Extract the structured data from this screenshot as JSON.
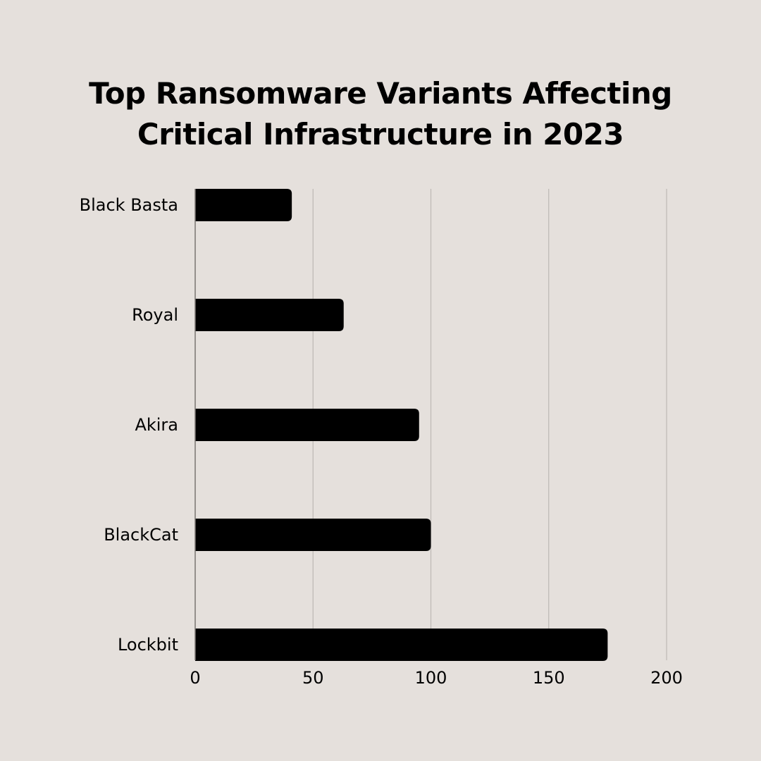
{
  "title_lines": [
    "Top Ransomware Variants Affecting",
    "Critical Infrastructure in 2023"
  ],
  "colors": {
    "background": "#E5E0DC",
    "bar": "#000000",
    "grid": "#BDB8B4",
    "axis": "#7A7672"
  },
  "chart_data": {
    "type": "bar",
    "orientation": "horizontal",
    "title": "Top Ransomware Variants Affecting Critical Infrastructure in 2023",
    "categories": [
      "Black Basta",
      "Royal",
      "Akira",
      "BlackCat",
      "Lockbit"
    ],
    "values": [
      41,
      63,
      95,
      100,
      175
    ],
    "xlabel": "",
    "ylabel": "",
    "xlim": [
      0,
      200
    ],
    "xticks": [
      0,
      50,
      100,
      150,
      200
    ],
    "grid": "vertical",
    "legend": "none"
  }
}
